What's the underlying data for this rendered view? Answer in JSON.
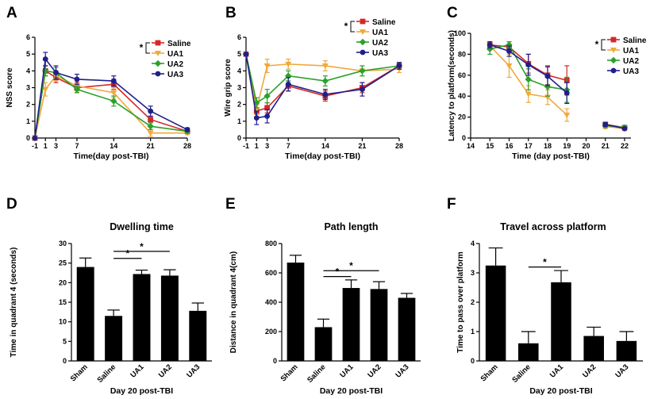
{
  "chart_data": [
    {
      "panel": "A",
      "type": "line",
      "title": "",
      "xlabel": "Time(day post-TBI)",
      "ylabel": "NSS score",
      "x": [
        -1,
        1,
        3,
        7,
        14,
        21,
        28
      ],
      "x_ticks": [
        "-1",
        "1",
        "3",
        "7",
        "14",
        "21",
        "28"
      ],
      "xlim": [
        -1,
        28
      ],
      "ylim": [
        0,
        6
      ],
      "y_ticks": [
        "0",
        "1",
        "2",
        "3",
        "4",
        "5",
        "6"
      ],
      "series": [
        {
          "name": "Saline",
          "color": "#d62728",
          "marker": "square",
          "values": [
            0,
            4.0,
            3.6,
            3.0,
            3.2,
            1.1,
            0.4
          ],
          "errors": [
            0,
            0.3,
            0.3,
            0.3,
            0.3,
            0.2,
            0.1
          ]
        },
        {
          "name": "UA1",
          "color": "#f0a93b",
          "marker": "tri-down",
          "values": [
            0,
            2.9,
            3.7,
            3.1,
            2.7,
            0.3,
            0.3
          ],
          "errors": [
            0,
            0.4,
            0.3,
            0.3,
            0.3,
            0.2,
            0.1
          ]
        },
        {
          "name": "UA2",
          "color": "#2ca02c",
          "marker": "diamond",
          "values": [
            0,
            4.0,
            3.9,
            2.9,
            2.2,
            0.7,
            0.4
          ],
          "errors": [
            0,
            0.3,
            0.3,
            0.2,
            0.3,
            0.2,
            0.1
          ]
        },
        {
          "name": "UA3",
          "color": "#1f1f8c",
          "marker": "circle",
          "values": [
            0,
            4.7,
            3.9,
            3.5,
            3.4,
            1.6,
            0.5
          ],
          "errors": [
            0,
            0.4,
            0.4,
            0.3,
            0.3,
            0.3,
            0.1
          ]
        }
      ],
      "legend_star": "*"
    },
    {
      "panel": "B",
      "type": "line",
      "title": "",
      "xlabel": "Time(day post-TBI)",
      "ylabel": "Wire grip score",
      "x": [
        -1,
        1,
        3,
        7,
        14,
        21,
        28
      ],
      "x_ticks": [
        "-1",
        "1",
        "3",
        "7",
        "14",
        "21",
        "28"
      ],
      "xlim": [
        -1,
        28
      ],
      "ylim": [
        0,
        6
      ],
      "y_ticks": [
        "0",
        "1",
        "2",
        "3",
        "4",
        "5",
        "6"
      ],
      "series": [
        {
          "name": "Saline",
          "color": "#d62728",
          "marker": "square",
          "values": [
            5.0,
            1.6,
            1.8,
            3.1,
            2.5,
            3.0,
            4.3
          ],
          "errors": [
            0,
            0.4,
            0.3,
            0.3,
            0.3,
            0.3,
            0.2
          ]
        },
        {
          "name": "UA1",
          "color": "#f0a93b",
          "marker": "tri-down",
          "values": [
            5.0,
            1.7,
            4.3,
            4.4,
            4.3,
            4.0,
            4.1
          ],
          "errors": [
            0,
            0.3,
            0.4,
            0.3,
            0.3,
            0.3,
            0.2
          ]
        },
        {
          "name": "UA2",
          "color": "#2ca02c",
          "marker": "diamond",
          "values": [
            5.0,
            2.1,
            2.5,
            3.7,
            3.4,
            4.0,
            4.3
          ],
          "errors": [
            0,
            0.3,
            0.4,
            0.3,
            0.3,
            0.3,
            0.2
          ]
        },
        {
          "name": "UA3",
          "color": "#1f1f8c",
          "marker": "circle",
          "values": [
            5.0,
            1.2,
            1.3,
            3.2,
            2.6,
            2.9,
            4.3
          ],
          "errors": [
            0,
            0.4,
            0.4,
            0.4,
            0.3,
            0.4,
            0.2
          ]
        }
      ],
      "legend_star": "*"
    },
    {
      "panel": "C",
      "type": "line",
      "title": "",
      "xlabel": "Time (day post-TBI)",
      "ylabel": "Latency to platform(seconds)",
      "x_ticks": [
        "14",
        "15",
        "16",
        "17",
        "18",
        "19",
        "20",
        "21",
        "22"
      ],
      "xlim": [
        14,
        22.5
      ],
      "ylim": [
        0,
        100
      ],
      "y_ticks": [
        "0",
        "20",
        "40",
        "60",
        "80",
        "100"
      ],
      "segments": [
        [
          15,
          16,
          17,
          18,
          19
        ],
        [
          21,
          22
        ]
      ],
      "series": [
        {
          "name": "Saline",
          "color": "#d62728",
          "marker": "square",
          "values": [
            [
              89,
              87,
              71,
              60,
              55
            ],
            [
              13,
              10
            ]
          ],
          "errors": [
            [
              3,
              5,
              9,
              9,
              14
            ],
            [
              2,
              2
            ]
          ]
        },
        {
          "name": "UA1",
          "color": "#f0a93b",
          "marker": "tri-down",
          "values": [
            [
              88,
              69,
              42,
              39,
              22
            ],
            [
              11,
              9
            ]
          ],
          "errors": [
            [
              4,
              11,
              8,
              7,
              6
            ],
            [
              2,
              2
            ]
          ]
        },
        {
          "name": "UA2",
          "color": "#2ca02c",
          "marker": "diamond",
          "values": [
            [
              85,
              89,
              56,
              49,
              46
            ],
            [
              12,
              10
            ]
          ],
          "errors": [
            [
              5,
              3,
              10,
              9,
              12
            ],
            [
              2,
              2
            ]
          ]
        },
        {
          "name": "UA3",
          "color": "#1f1f8c",
          "marker": "circle",
          "values": [
            [
              89,
              83,
              70,
              59,
              43
            ],
            [
              13,
              9
            ]
          ],
          "errors": [
            [
              3,
              5,
              10,
              9,
              10
            ],
            [
              2,
              1
            ]
          ]
        }
      ],
      "legend_star": "*"
    },
    {
      "panel": "D",
      "type": "bar",
      "title": "Dwelling time",
      "xlabel": "Day 20 post-TBI",
      "ylabel": "Time in quadrant 4 (seconds)",
      "categories": [
        "Sham",
        "Saline",
        "UA1",
        "UA2",
        "UA3"
      ],
      "values": [
        24,
        11.5,
        22.2,
        21.8,
        12.8
      ],
      "errors": [
        2.3,
        1.5,
        1.0,
        1.5,
        2.0
      ],
      "ylim": [
        0,
        30
      ],
      "y_ticks": [
        "0",
        "5",
        "10",
        "15",
        "20",
        "25",
        "30"
      ],
      "significance": [
        {
          "from": "Saline",
          "to": "UA1",
          "label": "*",
          "level": 26.2
        },
        {
          "from": "Saline",
          "to": "UA2",
          "label": "*",
          "level": 28.0
        }
      ]
    },
    {
      "panel": "E",
      "type": "bar",
      "title": "Path length",
      "xlabel": "Day 20 post-TBI",
      "ylabel": "Distance in quadrant 4(cm)",
      "categories": [
        "Sham",
        "Saline",
        "UA1",
        "UA2",
        "UA3"
      ],
      "values": [
        670,
        230,
        497,
        490,
        430
      ],
      "errors": [
        50,
        55,
        55,
        50,
        30
      ],
      "ylim": [
        0,
        800
      ],
      "y_ticks": [
        "0",
        "200",
        "400",
        "600",
        "800"
      ],
      "significance": [
        {
          "from": "Saline",
          "to": "UA1",
          "label": "*",
          "level": 575
        },
        {
          "from": "Saline",
          "to": "UA2",
          "label": "*",
          "level": 615
        }
      ]
    },
    {
      "panel": "F",
      "type": "bar",
      "title": "Travel across platform",
      "xlabel": "Day 20 post-TBI",
      "ylabel": "Time to pass over platform",
      "categories": [
        "Sham",
        "Saline",
        "UA1",
        "UA2",
        "UA3"
      ],
      "values": [
        3.25,
        0.6,
        2.68,
        0.85,
        0.68
      ],
      "errors": [
        0.6,
        0.4,
        0.4,
        0.3,
        0.32
      ],
      "ylim": [
        0,
        4
      ],
      "y_ticks": [
        "0",
        "1",
        "2",
        "3",
        "4"
      ],
      "significance": [
        {
          "from": "Saline",
          "to": "UA1",
          "label": "*",
          "level": 3.2
        }
      ]
    }
  ]
}
